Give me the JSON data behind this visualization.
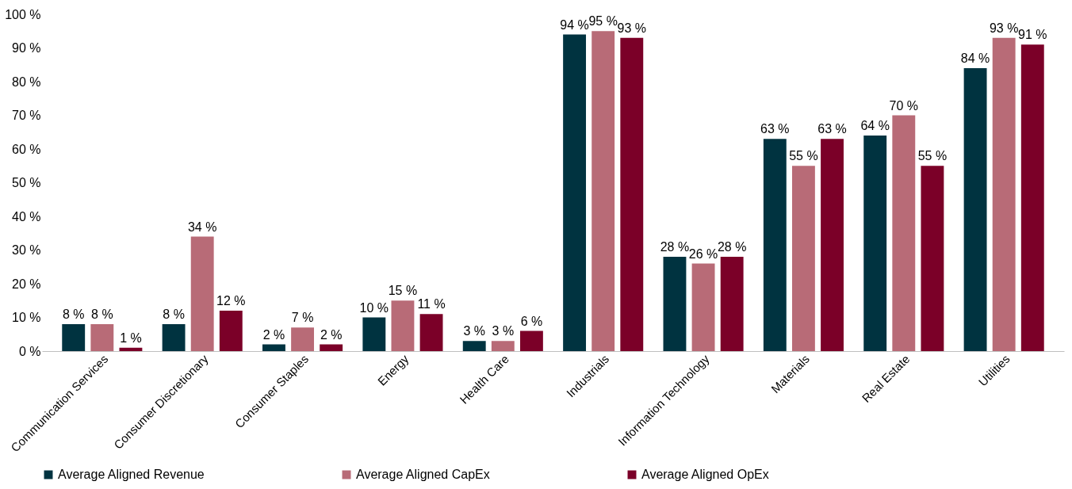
{
  "chart_data": {
    "type": "bar",
    "categories": [
      "Communication Services",
      "Consumer Discretionary",
      "Consumer Staples",
      "Energy",
      "Health Care",
      "Industrials",
      "Information Technology",
      "Materials",
      "Real Estate",
      "Utilities"
    ],
    "series": [
      {
        "name": "Average Aligned Revenue",
        "color": "#003340",
        "values": [
          8,
          8,
          2,
          10,
          3,
          94,
          28,
          63,
          64,
          84
        ],
        "value_labels": [
          "8 %",
          "8 %",
          "2 %",
          "10 %",
          "3 %",
          "94 %",
          "28 %",
          "63 %",
          "64 %",
          "84 %"
        ]
      },
      {
        "name": "Average Aligned CapEx",
        "color": "#b86b77",
        "values": [
          8,
          34,
          7,
          15,
          3,
          95,
          26,
          55,
          70,
          93
        ],
        "value_labels": [
          "8 %",
          "34 %",
          "7 %",
          "15 %",
          "3 %",
          "95 %",
          "26 %",
          "55 %",
          "70 %",
          "93 %"
        ]
      },
      {
        "name": "Average Aligned OpEx",
        "color": "#7b0028",
        "values": [
          1,
          12,
          2,
          11,
          6,
          93,
          28,
          63,
          55,
          91
        ],
        "value_labels": [
          "1 %",
          "12 %",
          "2 %",
          "11 %",
          "6 %",
          "93 %",
          "28 %",
          "63 %",
          "55 %",
          "91 %"
        ]
      }
    ],
    "ylim": [
      0,
      100
    ],
    "yticks": [
      {
        "value": 0,
        "label": "0 %"
      },
      {
        "value": 10,
        "label": "10 %"
      },
      {
        "value": 20,
        "label": "20 %"
      },
      {
        "value": 30,
        "label": "30 %"
      },
      {
        "value": 40,
        "label": "40 %"
      },
      {
        "value": 50,
        "label": "50 %"
      },
      {
        "value": 60,
        "label": "60 %"
      },
      {
        "value": 70,
        "label": "70 %"
      },
      {
        "value": 80,
        "label": "80 %"
      },
      {
        "value": 90,
        "label": "90 %"
      },
      {
        "value": 100,
        "label": "100 %"
      }
    ],
    "grid": false,
    "legend": "bottom"
  }
}
